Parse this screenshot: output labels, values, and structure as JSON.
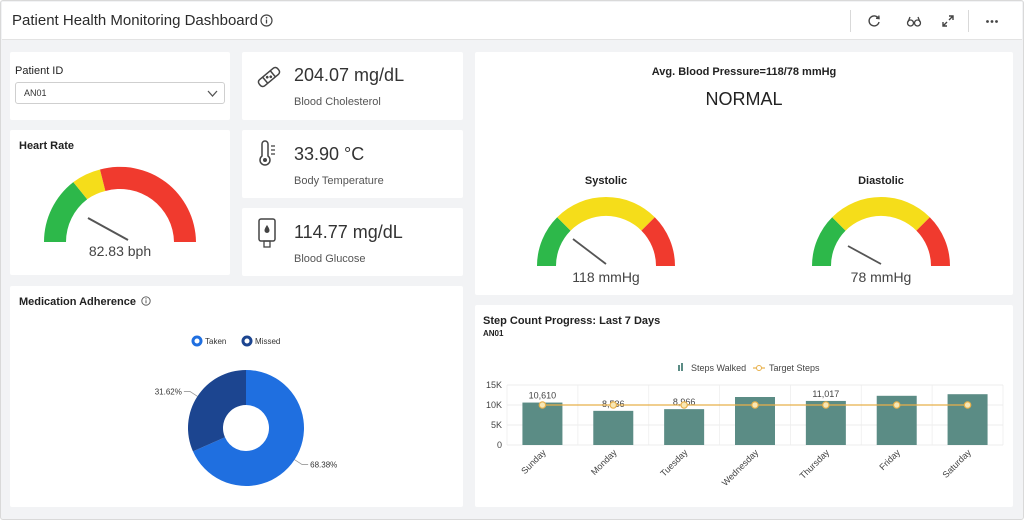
{
  "header": {
    "title": "Patient Health Monitoring Dashboard",
    "icons": [
      "info-icon",
      "refresh-icon",
      "view-icon",
      "expand-icon",
      "more-icon"
    ]
  },
  "patient": {
    "label": "Patient ID",
    "selected": "AN01"
  },
  "kpis": [
    {
      "value": "204.07 mg/dL",
      "label": "Blood Cholesterol",
      "icon": "bandage-icon"
    },
    {
      "value": "33.90 °C",
      "label": "Body Temperature",
      "icon": "thermometer-icon"
    },
    {
      "value": "114.77 mg/dL",
      "label": "Blood Glucose",
      "icon": "glucose-meter-icon"
    }
  ],
  "heart_rate": {
    "title": "Heart Rate",
    "value_text": "82.83 bph",
    "value": 82.83,
    "colors": {
      "low": "#2db84a",
      "mid": "#f5dd1a",
      "high": "#f03a2e"
    }
  },
  "blood_pressure": {
    "title": "Avg. Blood Pressure=118/78  mmHg",
    "status": "NORMAL",
    "systolic": {
      "label": "Systolic",
      "value_text": "118 mmHg",
      "level": 0.27
    },
    "diastolic": {
      "label": "Diastolic",
      "value_text": "78 mmHg",
      "level": 0.27
    }
  },
  "medication": {
    "title": "Medication Adherence",
    "chart_data": {
      "type": "pie",
      "categories": [
        "Taken",
        "Missed"
      ],
      "values": [
        68.38,
        31.62
      ],
      "labels": [
        "68.38%",
        "31.62%"
      ],
      "colors": [
        "#1f6fe0",
        "#1c4590"
      ],
      "legend": "top"
    }
  },
  "steps": {
    "title": "Step Count Progress: Last 7 Days",
    "subtitle": "AN01",
    "chart_data": {
      "type": "bar",
      "categories": [
        "Sunday",
        "Monday",
        "Tuesday",
        "Wednesday",
        "Thursday",
        "Friday",
        "Saturday"
      ],
      "series": [
        {
          "name": "Steps Walked",
          "type": "bar",
          "values": [
            10610,
            8536,
            8966,
            12000,
            11017,
            12300,
            12700
          ],
          "labels": [
            "10,610",
            "8,536",
            "8,966",
            "",
            "11,017",
            "",
            ""
          ],
          "color": "#5b8c85"
        },
        {
          "name": "Target Steps",
          "type": "line",
          "values": [
            10000,
            10000,
            10000,
            10000,
            10000,
            10000,
            10000
          ],
          "color": "#e8b04a"
        }
      ],
      "ylim": [
        0,
        15000
      ],
      "yticks": [
        "0",
        "5K",
        "10K",
        "15K"
      ],
      "legend": "top"
    }
  }
}
